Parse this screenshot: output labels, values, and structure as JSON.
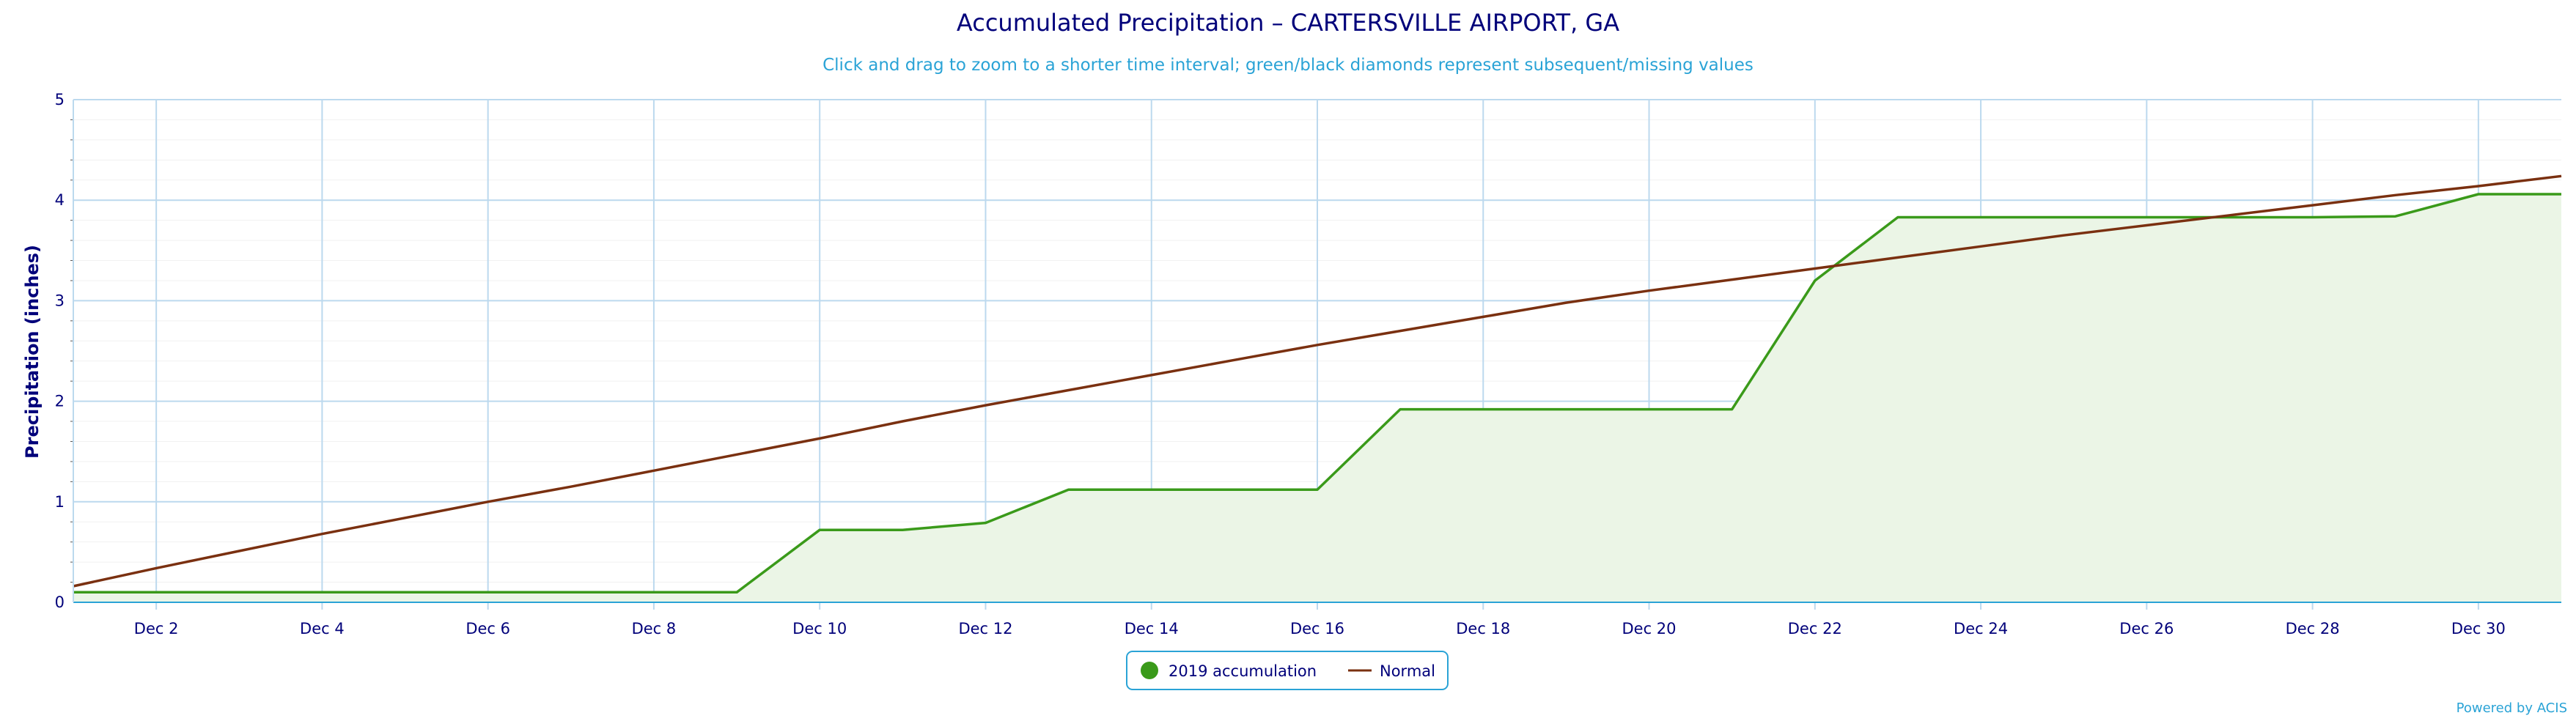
{
  "chart_data": {
    "type": "line",
    "title": "Accumulated Precipitation – CARTERSVILLE AIRPORT, GA",
    "subtitle": "Click and drag to zoom to a shorter time interval; green/black diamonds represent subsequent/missing values",
    "xlabel": "",
    "ylabel": "Precipitation (inches)",
    "ylim": [
      0,
      5
    ],
    "yticks": [
      "0",
      "1",
      "2",
      "3",
      "4",
      "5"
    ],
    "xlim": [
      1,
      31
    ],
    "xticks": [
      {
        "day": 2,
        "label": "Dec 2"
      },
      {
        "day": 4,
        "label": "Dec 4"
      },
      {
        "day": 6,
        "label": "Dec 6"
      },
      {
        "day": 8,
        "label": "Dec 8"
      },
      {
        "day": 10,
        "label": "Dec 10"
      },
      {
        "day": 12,
        "label": "Dec 12"
      },
      {
        "day": 14,
        "label": "Dec 14"
      },
      {
        "day": 16,
        "label": "Dec 16"
      },
      {
        "day": 18,
        "label": "Dec 18"
      },
      {
        "day": 20,
        "label": "Dec 20"
      },
      {
        "day": 22,
        "label": "Dec 22"
      },
      {
        "day": 24,
        "label": "Dec 24"
      },
      {
        "day": 26,
        "label": "Dec 26"
      },
      {
        "day": 28,
        "label": "Dec 28"
      },
      {
        "day": 30,
        "label": "Dec 30"
      }
    ],
    "grid": true,
    "legend_position": "bottom-center",
    "series": [
      {
        "name": "2019 accumulation",
        "type": "area",
        "color": "#3a9a1a",
        "fill": "#ebf5e6",
        "x": [
          1,
          2,
          3,
          4,
          5,
          6,
          7,
          8,
          9,
          10,
          11,
          12,
          13,
          14,
          15,
          16,
          17,
          18,
          19,
          20,
          21,
          22,
          23,
          24,
          25,
          26,
          27,
          28,
          29,
          30,
          31
        ],
        "values": [
          0.1,
          0.1,
          0.1,
          0.1,
          0.1,
          0.1,
          0.1,
          0.1,
          0.1,
          0.72,
          0.72,
          0.79,
          1.12,
          1.12,
          1.12,
          1.12,
          1.92,
          1.92,
          1.92,
          1.92,
          1.92,
          3.2,
          3.83,
          3.83,
          3.83,
          3.83,
          3.83,
          3.83,
          3.84,
          4.06,
          4.06
        ]
      },
      {
        "name": "Normal",
        "type": "line",
        "color": "#7a3010",
        "x": [
          1,
          2,
          3,
          4,
          5,
          6,
          7,
          8,
          9,
          10,
          11,
          12,
          13,
          14,
          15,
          16,
          17,
          18,
          19,
          20,
          21,
          22,
          23,
          24,
          25,
          26,
          27,
          28,
          29,
          30,
          31
        ],
        "values": [
          0.16,
          0.34,
          0.51,
          0.68,
          0.84,
          1.0,
          1.15,
          1.31,
          1.47,
          1.63,
          1.8,
          1.96,
          2.11,
          2.26,
          2.41,
          2.56,
          2.7,
          2.84,
          2.98,
          3.1,
          3.21,
          3.32,
          3.43,
          3.54,
          3.65,
          3.75,
          3.85,
          3.95,
          4.05,
          4.14,
          4.24
        ]
      }
    ],
    "credit": "Powered by ACIS"
  },
  "colors": {
    "title": "#00007a",
    "subtitle": "#2aa3d6",
    "grid_major": "#bcd9ee",
    "grid_minor": "#f1f1f1",
    "axis": "#2aa3d6"
  }
}
